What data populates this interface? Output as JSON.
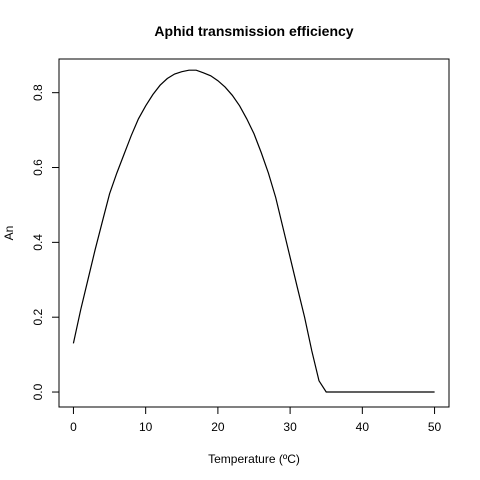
{
  "chart_data": {
    "type": "line",
    "title": "Aphid transmission efficiency",
    "xlabel": "Temperature (ºC)",
    "ylabel": "An",
    "xlim": [
      -2,
      52
    ],
    "ylim": [
      -0.04,
      0.89
    ],
    "x_ticks": [
      0,
      10,
      20,
      30,
      40,
      50
    ],
    "x_tick_labels": [
      "0",
      "10",
      "20",
      "30",
      "40",
      "50"
    ],
    "y_ticks": [
      0.0,
      0.2,
      0.4,
      0.6,
      0.8
    ],
    "y_tick_labels": [
      "0.0",
      "0.2",
      "0.4",
      "0.6",
      "0.8"
    ],
    "grid": false,
    "line_color": "#000000",
    "series": [
      {
        "x": [
          0,
          1,
          2,
          3,
          4,
          5,
          6,
          7,
          8,
          9,
          10,
          11,
          12,
          13,
          14,
          15,
          16,
          17,
          18,
          19,
          20,
          21,
          22,
          23,
          24,
          25,
          26,
          27,
          28,
          29,
          30,
          31,
          32,
          33,
          34,
          35,
          36,
          37,
          38,
          39,
          40,
          41,
          42,
          43,
          44,
          45,
          46,
          47,
          48,
          49,
          50
        ],
        "y": [
          0.13,
          0.22,
          0.3,
          0.38,
          0.455,
          0.53,
          0.585,
          0.635,
          0.685,
          0.73,
          0.765,
          0.795,
          0.82,
          0.838,
          0.85,
          0.856,
          0.86,
          0.86,
          0.853,
          0.845,
          0.832,
          0.815,
          0.793,
          0.765,
          0.73,
          0.69,
          0.64,
          0.585,
          0.52,
          0.44,
          0.36,
          0.28,
          0.2,
          0.11,
          0.03,
          0.0,
          0.0,
          0.0,
          0.0,
          0.0,
          0.0,
          0.0,
          0.0,
          0.0,
          0.0,
          0.0,
          0.0,
          0.0,
          0.0,
          0.0,
          0.0
        ]
      }
    ]
  }
}
